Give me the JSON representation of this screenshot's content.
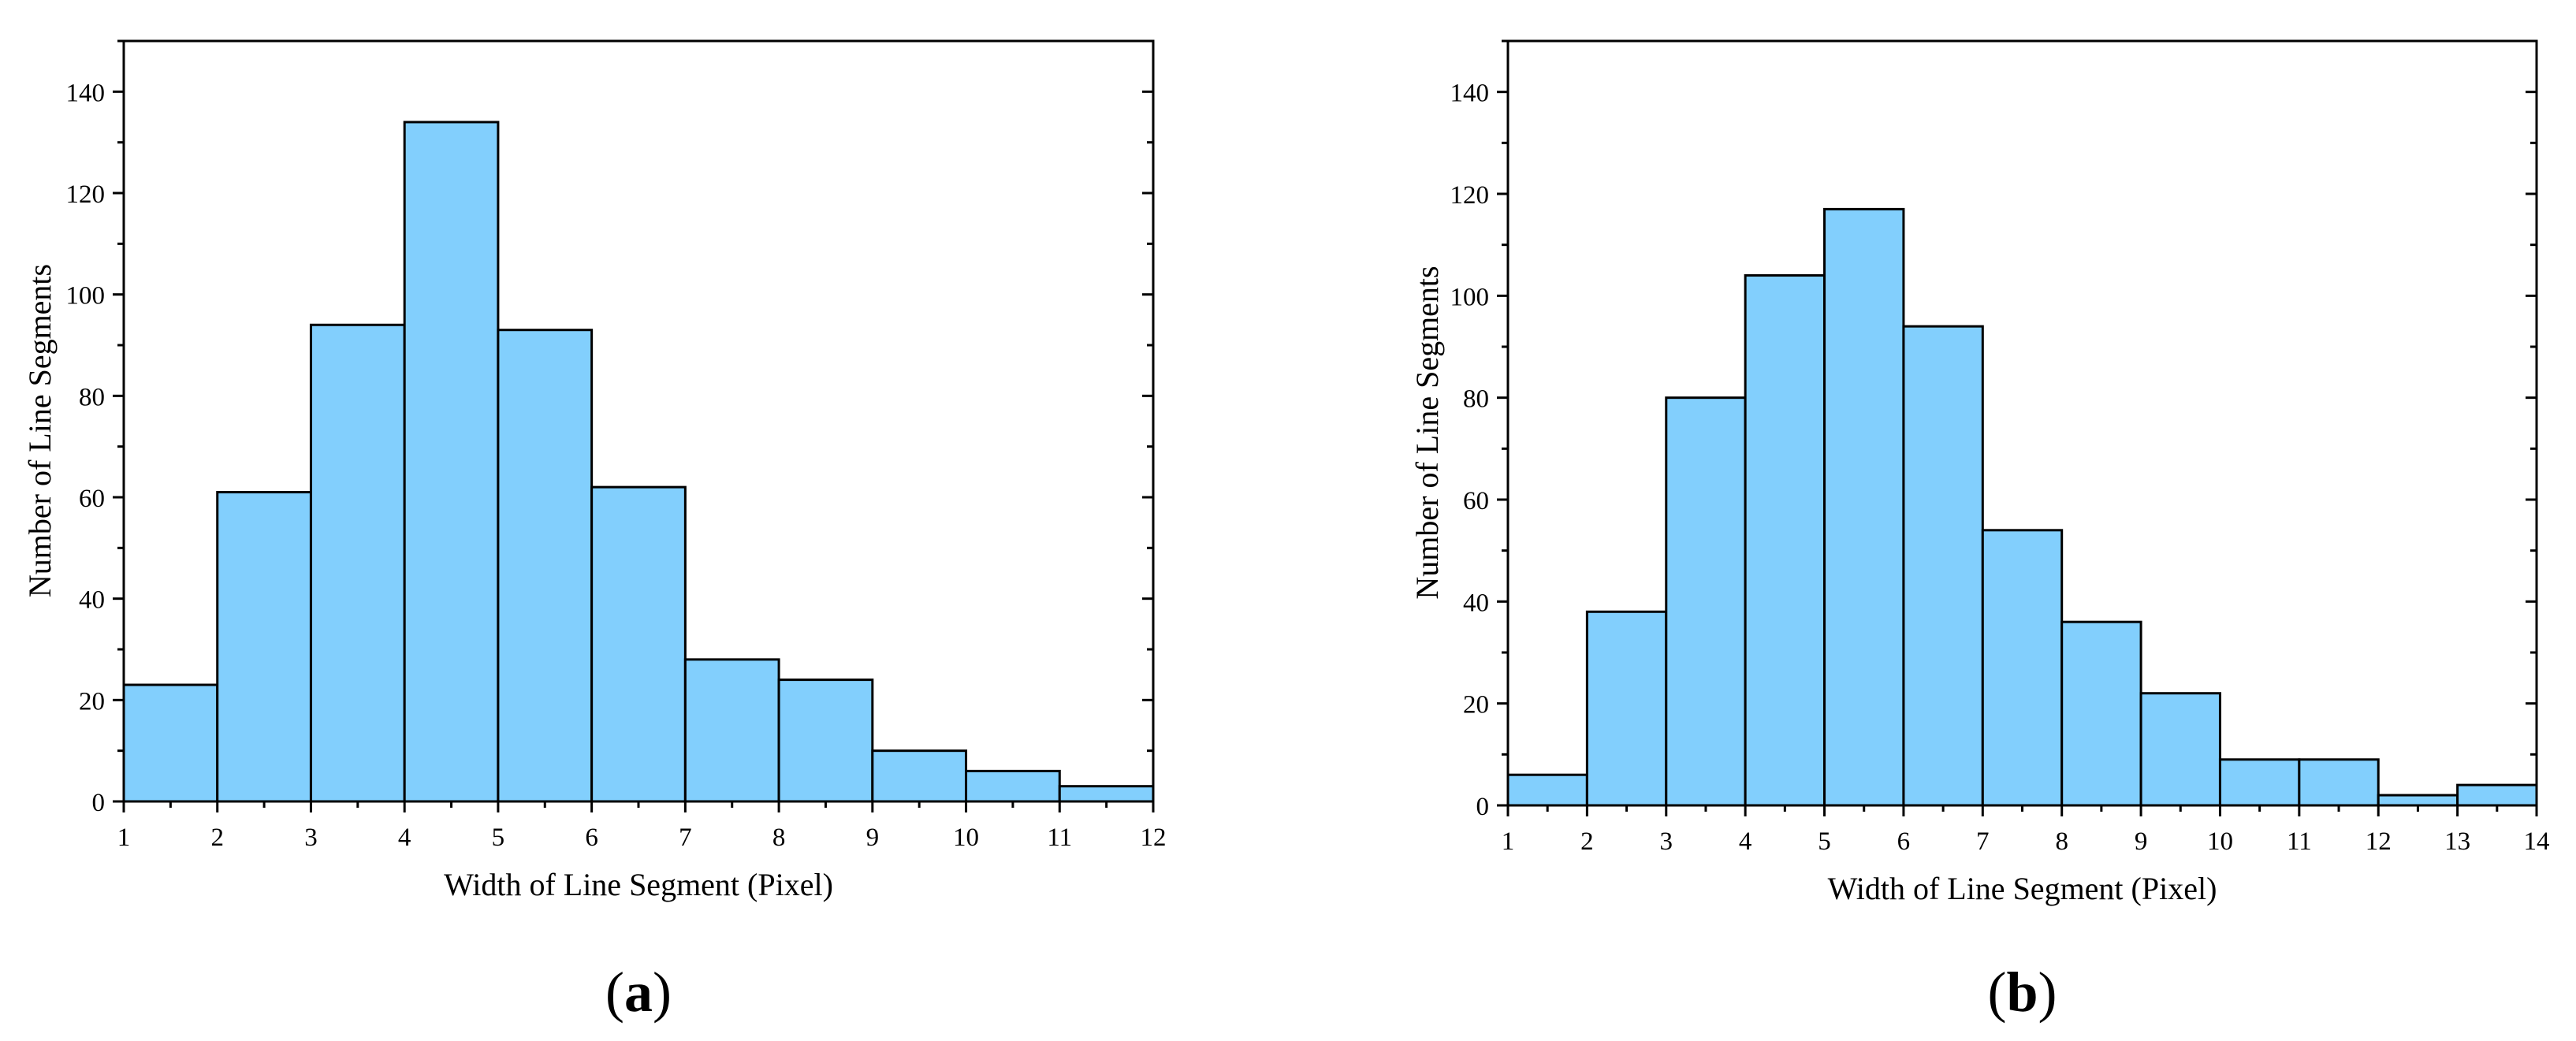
{
  "chart_data": [
    {
      "type": "bar",
      "caption": {
        "open": "(",
        "letter": "a",
        "close": ")"
      },
      "xlabel": "Width of Line Segment (Pixel)",
      "ylabel": "Number of Line Segments",
      "xlim": [
        1,
        12
      ],
      "ylim": [
        0,
        150
      ],
      "x_ticks": [
        1,
        2,
        3,
        4,
        5,
        6,
        7,
        8,
        9,
        10,
        11,
        12
      ],
      "y_ticks": [
        0,
        20,
        40,
        60,
        80,
        100,
        120,
        140
      ],
      "bins": [
        {
          "from": 1,
          "to": 2,
          "value": 23
        },
        {
          "from": 2,
          "to": 3,
          "value": 61
        },
        {
          "from": 3,
          "to": 4,
          "value": 94
        },
        {
          "from": 4,
          "to": 5,
          "value": 134
        },
        {
          "from": 5,
          "to": 6,
          "value": 93
        },
        {
          "from": 6,
          "to": 7,
          "value": 62
        },
        {
          "from": 7,
          "to": 8,
          "value": 28
        },
        {
          "from": 8,
          "to": 9,
          "value": 24
        },
        {
          "from": 9,
          "to": 10,
          "value": 10
        },
        {
          "from": 10,
          "to": 11,
          "value": 6
        },
        {
          "from": 11,
          "to": 12,
          "value": 3
        }
      ],
      "bar_color": "#82CFFD"
    },
    {
      "type": "bar",
      "caption": {
        "open": "(",
        "letter": "b",
        "close": ")"
      },
      "xlabel": "Width of Line Segment (Pixel)",
      "ylabel": "Number of Line Segments",
      "xlim": [
        1,
        14
      ],
      "ylim": [
        0,
        150
      ],
      "x_ticks": [
        1,
        2,
        3,
        4,
        5,
        6,
        7,
        8,
        9,
        10,
        11,
        12,
        13,
        14
      ],
      "y_ticks": [
        0,
        20,
        40,
        60,
        80,
        100,
        120,
        140
      ],
      "bins": [
        {
          "from": 1,
          "to": 2,
          "value": 6
        },
        {
          "from": 2,
          "to": 3,
          "value": 38
        },
        {
          "from": 3,
          "to": 4,
          "value": 80
        },
        {
          "from": 4,
          "to": 5,
          "value": 104
        },
        {
          "from": 5,
          "to": 6,
          "value": 117
        },
        {
          "from": 6,
          "to": 7,
          "value": 94
        },
        {
          "from": 7,
          "to": 8,
          "value": 54
        },
        {
          "from": 8,
          "to": 9,
          "value": 36
        },
        {
          "from": 9,
          "to": 10,
          "value": 22
        },
        {
          "from": 10,
          "to": 11,
          "value": 9
        },
        {
          "from": 11,
          "to": 12,
          "value": 9
        },
        {
          "from": 12,
          "to": 13,
          "value": 2
        },
        {
          "from": 13,
          "to": 14,
          "value": 4
        }
      ],
      "bar_color": "#82CFFD"
    }
  ]
}
